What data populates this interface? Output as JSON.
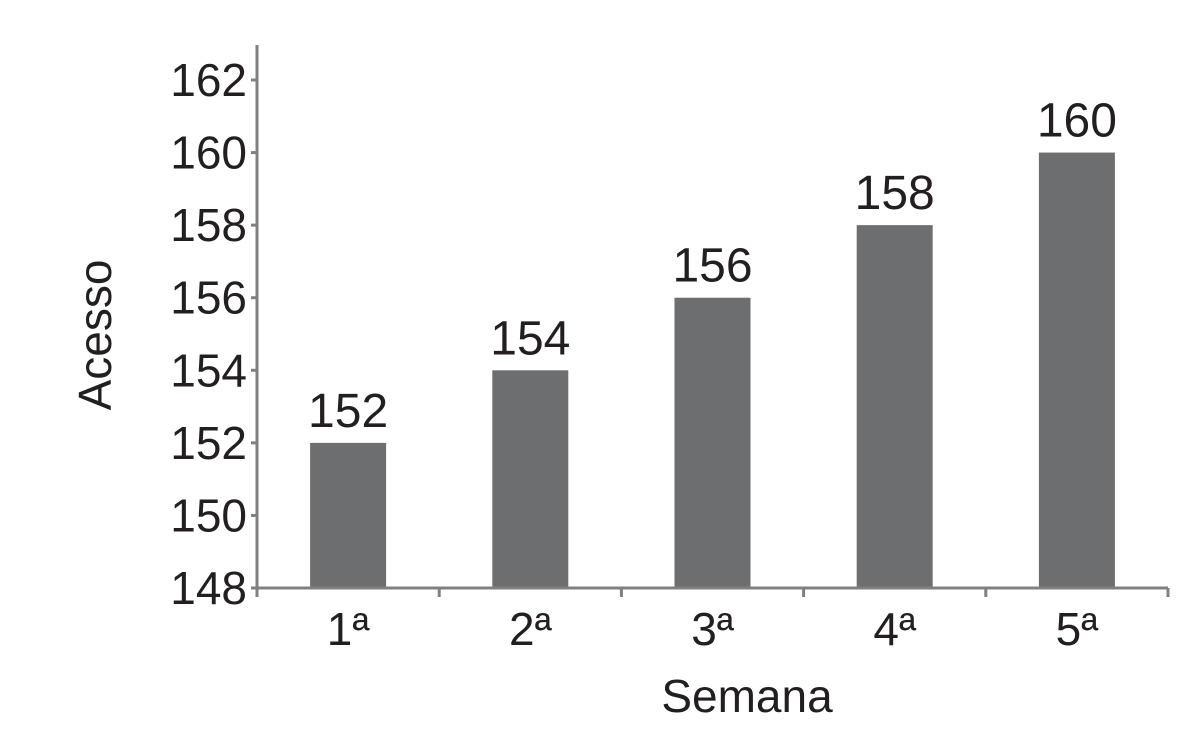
{
  "chart_data": {
    "type": "bar",
    "categories": [
      "1ª",
      "2ª",
      "3ª",
      "4ª",
      "5ª"
    ],
    "values": [
      152,
      154,
      156,
      158,
      160
    ],
    "data_labels": [
      "152",
      "154",
      "156",
      "158",
      "160"
    ],
    "xlabel": "Semana",
    "ylabel": "Acesso",
    "ylim": [
      148,
      162
    ],
    "yticks": [
      148,
      150,
      152,
      154,
      156,
      158,
      160,
      162
    ],
    "grid": false,
    "legend": "none",
    "bar_color": "#6d6e70",
    "axis_color": "#808080",
    "text_color": "#231f20"
  }
}
